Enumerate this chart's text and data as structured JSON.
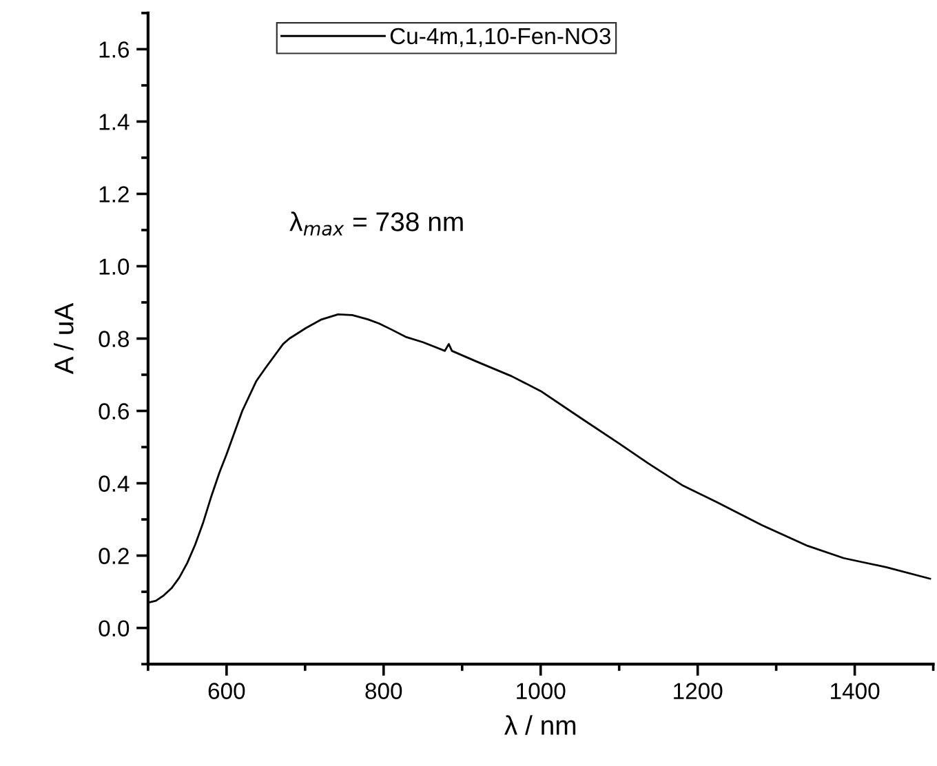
{
  "chart_data": {
    "type": "line",
    "xlabel": "λ / nm",
    "ylabel": "A / uA",
    "x": [
      500,
      510,
      520,
      530,
      540,
      550,
      560,
      570,
      580,
      591,
      600,
      610,
      620,
      638,
      650,
      672,
      680,
      701,
      720,
      742,
      760,
      780,
      794,
      810,
      829,
      850,
      878,
      883,
      887,
      920,
      963,
      1000,
      1050,
      1100,
      1137,
      1180,
      1224,
      1282,
      1340,
      1386,
      1440,
      1496
    ],
    "series": [
      {
        "name": "Cu-4m,1,10-Fen-NO3",
        "color": "#000000",
        "values": [
          0.07,
          0.075,
          0.09,
          0.11,
          0.14,
          0.18,
          0.23,
          0.29,
          0.36,
          0.43,
          0.48,
          0.54,
          0.6,
          0.683,
          0.72,
          0.785,
          0.8,
          0.829,
          0.852,
          0.867,
          0.865,
          0.853,
          0.842,
          0.825,
          0.804,
          0.79,
          0.766,
          0.785,
          0.766,
          0.735,
          0.696,
          0.655,
          0.582,
          0.51,
          0.455,
          0.395,
          0.348,
          0.284,
          0.227,
          0.193,
          0.168,
          0.136
        ]
      }
    ],
    "xlim": [
      500,
      1500
    ],
    "xticks": [
      {
        "value": 500,
        "label": null
      },
      600,
      {
        "value": 700,
        "label": null
      },
      800,
      {
        "value": 900,
        "label": null
      },
      1000,
      {
        "value": 1100,
        "label": null
      },
      1200,
      {
        "value": 1300,
        "label": null
      },
      1400,
      {
        "value": 1500,
        "label": null
      }
    ],
    "ylim": [
      -0.1,
      1.7
    ],
    "yticks": [
      {
        "value": -0.1,
        "label": null
      },
      {
        "value": 0,
        "label": "0.0"
      },
      {
        "value": 0.1,
        "label": null
      },
      0.2,
      {
        "value": 0.3,
        "label": null
      },
      0.4,
      {
        "value": 0.5,
        "label": null
      },
      0.6,
      {
        "value": 0.7,
        "label": null
      },
      0.8,
      {
        "value": 0.9,
        "label": null
      },
      {
        "value": 1.0,
        "label": "1.0"
      },
      {
        "value": 1.1,
        "label": null
      },
      1.2,
      {
        "value": 1.3,
        "label": null
      },
      1.4,
      {
        "value": 1.5,
        "label": null
      },
      1.6,
      {
        "value": 1.7,
        "label": null
      }
    ],
    "annotations": [
      "λ$_{max}$ = 738 nm"
    ],
    "legend": "top",
    "marker": "none",
    "line_style": "solid",
    "grid": false
  }
}
